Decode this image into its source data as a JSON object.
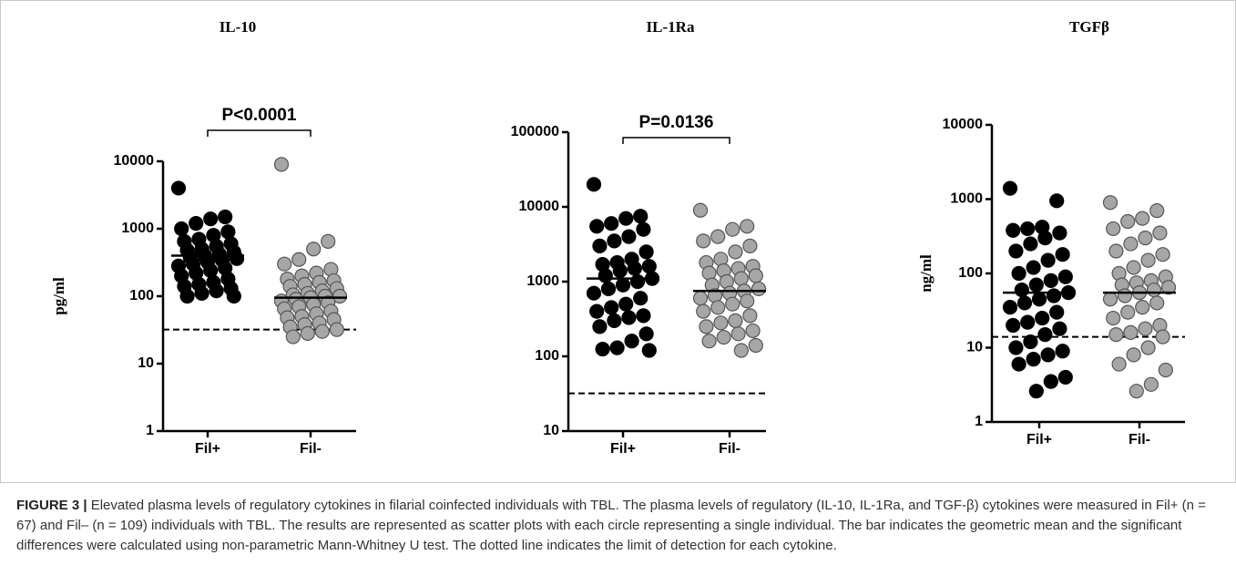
{
  "chart_data": [
    {
      "type": "scatter",
      "title": "IL-10",
      "ylabel": "pg/ml",
      "annotation": "P<0.0001",
      "log_scale": true,
      "categories": [
        "Fil+",
        "Fil-"
      ],
      "colors": [
        "#000000",
        "#a6a6a6"
      ],
      "values": [
        [
          4000,
          1500,
          1400,
          1200,
          1000,
          900,
          800,
          700,
          650,
          600,
          550,
          500,
          480,
          450,
          420,
          400,
          380,
          360,
          340,
          320,
          300,
          280,
          260,
          240,
          220,
          200,
          180,
          160,
          150,
          140,
          130,
          120,
          110,
          100,
          100
        ],
        [
          9000,
          650,
          500,
          350,
          300,
          250,
          220,
          200,
          180,
          170,
          160,
          150,
          140,
          130,
          120,
          110,
          105,
          100,
          100,
          95,
          90,
          85,
          80,
          75,
          70,
          65,
          60,
          55,
          50,
          48,
          45,
          40,
          38,
          35,
          32,
          30,
          28,
          25
        ]
      ],
      "means": [
        400,
        95
      ],
      "detection_limit": 32,
      "ylim": [
        1,
        10000
      ],
      "yticks": [
        1,
        10,
        100,
        1000,
        10000
      ]
    },
    {
      "type": "scatter",
      "title": "IL-1Ra",
      "annotation": "P=0.0136",
      "log_scale": true,
      "categories": [
        "Fil+",
        "Fil-"
      ],
      "colors": [
        "#000000",
        "#a6a6a6"
      ],
      "values": [
        [
          20000,
          7500,
          7000,
          6000,
          5500,
          5000,
          4000,
          3500,
          3000,
          2500,
          2000,
          1800,
          1700,
          1600,
          1500,
          1400,
          1200,
          1100,
          1000,
          900,
          800,
          700,
          600,
          500,
          450,
          400,
          350,
          330,
          300,
          250,
          200,
          160,
          130,
          125,
          120
        ],
        [
          9000,
          5500,
          5000,
          4000,
          3500,
          3000,
          2500,
          2000,
          1800,
          1600,
          1500,
          1400,
          1300,
          1200,
          1100,
          1000,
          900,
          800,
          750,
          700,
          650,
          600,
          550,
          500,
          450,
          400,
          350,
          300,
          280,
          250,
          220,
          200,
          180,
          160,
          140,
          120
        ]
      ],
      "means": [
        1100,
        750
      ],
      "detection_limit": 32,
      "ylim": [
        10,
        100000
      ],
      "yticks": [
        10,
        100,
        1000,
        10000,
        100000
      ]
    },
    {
      "type": "scatter",
      "title": "TGFβ",
      "ylabel": "ng/ml",
      "log_scale": true,
      "categories": [
        "Fil+",
        "Fil-"
      ],
      "colors": [
        "#000000",
        "#a6a6a6"
      ],
      "values": [
        [
          1400,
          950,
          420,
          400,
          380,
          350,
          300,
          250,
          200,
          180,
          150,
          120,
          100,
          90,
          80,
          70,
          60,
          55,
          50,
          45,
          40,
          35,
          30,
          25,
          22,
          20,
          18,
          15,
          12,
          10,
          9,
          8,
          7,
          6,
          4,
          3.5,
          2.6
        ],
        [
          900,
          700,
          550,
          500,
          400,
          350,
          300,
          250,
          200,
          180,
          150,
          120,
          100,
          90,
          80,
          75,
          70,
          65,
          60,
          55,
          50,
          45,
          40,
          35,
          30,
          25,
          20,
          18,
          16,
          15,
          14,
          10,
          8,
          6,
          5,
          3.2,
          2.6
        ]
      ],
      "means": [
        55,
        55
      ],
      "detection_limit": 14,
      "ylim": [
        1,
        10000
      ],
      "yticks": [
        1,
        10,
        100,
        1000,
        10000
      ]
    }
  ],
  "caption": {
    "label": "FIGURE 3 |",
    "text": "Elevated plasma levels of regulatory cytokines in filarial coinfected individuals with TBL. The plasma levels of regulatory (IL-10, IL-1Ra, and TGF-β) cytokines were measured in Fil+ (n = 67) and Fil– (n = 109) individuals with TBL. The results are represented as scatter plots with each circle representing a single individual. The bar indicates the geometric mean and the significant differences were calculated using non-parametric Mann-Whitney U test. The dotted line indicates the limit of detection for each cytokine."
  }
}
